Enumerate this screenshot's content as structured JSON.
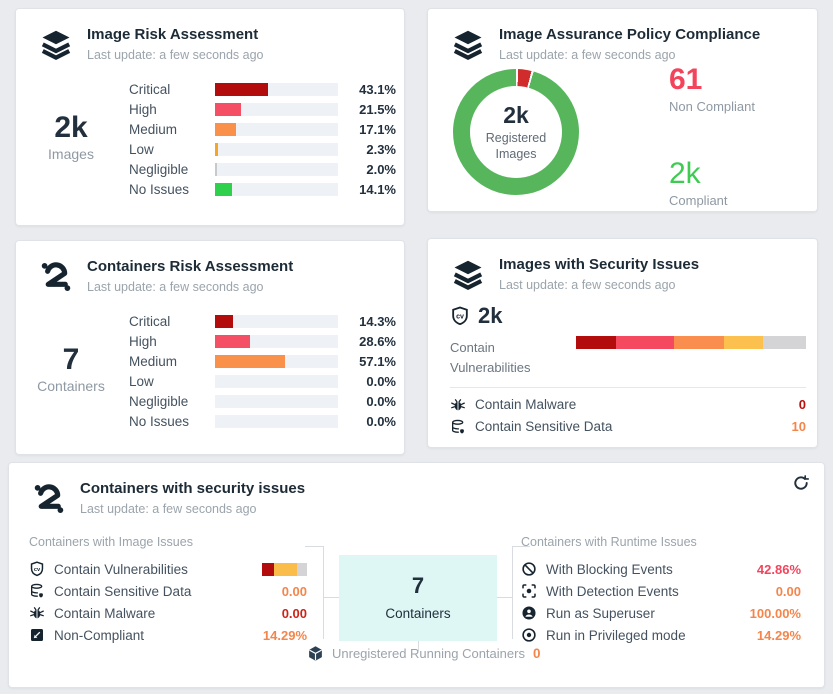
{
  "cards": {
    "image_risk": {
      "icon": "layers-icon",
      "title": "Image Risk Assessment",
      "subtitle": "Last update: a few seconds ago",
      "total_value": "2k",
      "total_label": "Images",
      "rows": [
        {
          "label": "Critical",
          "value": "43.1%",
          "pct": 43.1,
          "color": "#b30c0c"
        },
        {
          "label": "High",
          "value": "21.5%",
          "pct": 21.5,
          "color": "#f54f66"
        },
        {
          "label": "Medium",
          "value": "17.1%",
          "pct": 17.1,
          "color": "#f9914b"
        },
        {
          "label": "Low",
          "value": "2.3%",
          "pct": 2.3,
          "color": "#f5a623"
        },
        {
          "label": "Negligible",
          "value": "2.0%",
          "pct": 2.0,
          "color": "#c7cacd"
        },
        {
          "label": "No Issues",
          "value": "14.1%",
          "pct": 14.1,
          "color": "#2fd04b"
        }
      ]
    },
    "compliance": {
      "icon": "layers-icon",
      "title": "Image Assurance Policy Compliance",
      "subtitle": "Last update: a few seconds ago",
      "donut": {
        "non_compliant_pct": 3.4,
        "compliant_color": "#57b65c",
        "non_compliant_color": "#d02c2c"
      },
      "center_value": "2k",
      "center_label": "Registered Images",
      "non_compliant_value": "61",
      "non_compliant_label": "Non Compliant",
      "non_compliant_color": "#f2455d",
      "compliant_value": "2k",
      "compliant_label": "Compliant",
      "compliant_color": "#3fcb52"
    },
    "container_risk": {
      "icon": "containers-icon",
      "title": "Containers Risk Assessment",
      "subtitle": "Last update: a few seconds ago",
      "total_value": "7",
      "total_label": "Containers",
      "rows": [
        {
          "label": "Critical",
          "value": "14.3%",
          "pct": 14.3,
          "color": "#b30c0c"
        },
        {
          "label": "High",
          "value": "28.6%",
          "pct": 28.6,
          "color": "#f54f66"
        },
        {
          "label": "Medium",
          "value": "57.1%",
          "pct": 57.1,
          "color": "#f9914b"
        },
        {
          "label": "Low",
          "value": "0.0%",
          "pct": 0,
          "color": "#f5a623"
        },
        {
          "label": "Negligible",
          "value": "0.0%",
          "pct": 0,
          "color": "#c7cacd"
        },
        {
          "label": "No Issues",
          "value": "0.0%",
          "pct": 0,
          "color": "#2fd04b"
        }
      ]
    },
    "image_security": {
      "icon": "layers-icon",
      "title": "Images with Security Issues",
      "subtitle": "Last update: a few seconds ago",
      "vuln_icon": "shield-cv-icon",
      "vuln_value": "2k",
      "vuln_label": "Contain Vulnerabilities",
      "stacked_bar": [
        {
          "color": "#b30c0c",
          "pct": 17.5
        },
        {
          "color": "#f5495f",
          "pct": 25
        },
        {
          "color": "#f98e4e",
          "pct": 22
        },
        {
          "color": "#fcc04f",
          "pct": 17
        },
        {
          "color": "#d4d4d6",
          "pct": 18.5
        }
      ],
      "rows": [
        {
          "icon": "bug-icon",
          "label": "Contain Malware",
          "value": "0",
          "value_color": "#b8100d"
        },
        {
          "icon": "db-shield-icon",
          "label": "Contain Sensitive Data",
          "value": "10",
          "value_color": "#f5854a"
        }
      ]
    },
    "container_security": {
      "icon": "containers-icon",
      "title": "Containers with security issues",
      "subtitle": "Last update: a few seconds ago",
      "refresh_icon": "refresh-icon",
      "image_issues": {
        "heading": "Containers with Image Issues",
        "rows": [
          {
            "icon": "shield-cv-icon",
            "label": "Contain Vulnerabilities",
            "bar": [
              {
                "color": "#b30c0c",
                "pct": 26
              },
              {
                "color": "#fbbd4a",
                "pct": 52
              },
              {
                "color": "#d4d4d6",
                "pct": 22
              }
            ]
          },
          {
            "icon": "db-shield-icon",
            "label": "Contain Sensitive Data",
            "value": "0.00",
            "value_color": "#f5854a"
          },
          {
            "icon": "bug-icon",
            "label": "Contain Malware",
            "value": "0.00",
            "value_color": "#cc2418"
          },
          {
            "icon": "non-compliant-icon",
            "label": "Non-Compliant",
            "value": "14.29%",
            "value_color": "#f5854a"
          }
        ]
      },
      "runtime_issues": {
        "heading": "Containers with Runtime Issues",
        "rows": [
          {
            "icon": "blocking-icon",
            "label": "With Blocking Events",
            "value": "42.86%",
            "value_color": "#f2455d"
          },
          {
            "icon": "detection-icon",
            "label": "With Detection Events",
            "value": "0.00",
            "value_color": "#f5854a"
          },
          {
            "icon": "superuser-icon",
            "label": "Run as Superuser",
            "value": "100.00%",
            "value_color": "#f5854a"
          },
          {
            "icon": "privileged-icon",
            "label": "Run in Privileged mode",
            "value": "14.29%",
            "value_color": "#f5854a"
          }
        ]
      },
      "center_value": "7",
      "center_label": "Containers",
      "unregistered_icon": "cube-icon",
      "unregistered_label": "Unregistered Running Containers",
      "unregistered_value": "0",
      "unregistered_value_color": "#f5854a"
    }
  }
}
